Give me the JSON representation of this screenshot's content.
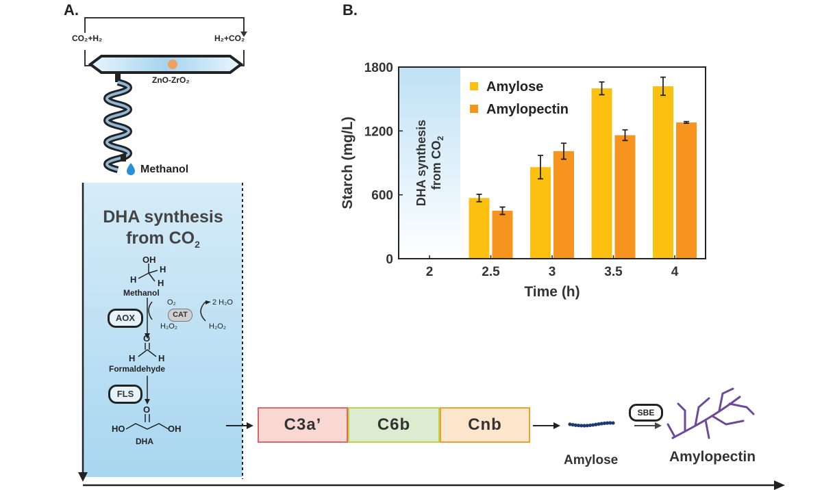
{
  "panel_a": {
    "label": "A.",
    "reactor": {
      "left_label": "CO₂+H₂",
      "right_label": "H₂+CO₂",
      "catalyst_label": "ZnO-ZrO₂",
      "product_label": "Methanol"
    },
    "dha_box": {
      "title_line1": "DHA synthesis",
      "title_line2": "from CO",
      "title_sub": "2",
      "methanol": {
        "label": "Methanol",
        "oh": "OH",
        "h": "H"
      },
      "aox": {
        "enzyme": "AOX",
        "o2": "O₂",
        "h2o2": "H₂O₂"
      },
      "cat": {
        "enzyme": "CAT",
        "h2o": "2 H₂O",
        "h2o2": "H₂O₂"
      },
      "formaldehyde": {
        "label": "Formaldehyde",
        "o": "O",
        "h": "H"
      },
      "fls": {
        "enzyme": "FLS"
      },
      "dha": {
        "label": "DHA",
        "o": "O",
        "ho": "HO",
        "oh": "OH"
      }
    },
    "modules": [
      "C3a’",
      "C6b",
      "Cnb"
    ],
    "sbe_label": "SBE",
    "amylose_label": "Amylose",
    "amylopectin_label": "Amylopectin",
    "colors": {
      "c3a": "#f9d8d4",
      "c3a_border": "#e06666",
      "c6b": "#dcecd0",
      "c6b_border": "#b9d64b",
      "cnb": "#fde6cc",
      "cnb_border": "#f0a030",
      "amylose_chain": "#1f3a73",
      "amylopectin": "#6b4a9a",
      "dha_bg_top": "#d6ecf8",
      "dha_bg_bottom": "#a8d6f0"
    }
  },
  "panel_b": {
    "label": "B.",
    "overlay_line1": "DHA synthesis",
    "overlay_line2": "from CO",
    "overlay_sub": "2"
  },
  "chart_data": {
    "type": "bar",
    "categories": [
      "2",
      "2.5",
      "3",
      "3.5",
      "4"
    ],
    "series": [
      {
        "name": "Amylose",
        "values": [
          0,
          570,
          860,
          1600,
          1620
        ],
        "errors": [
          0,
          35,
          110,
          60,
          85
        ],
        "color": "#fcc010"
      },
      {
        "name": "Amylopectin",
        "values": [
          0,
          450,
          1010,
          1160,
          1280
        ],
        "errors": [
          0,
          35,
          75,
          50,
          8
        ],
        "color": "#f7941d"
      }
    ],
    "xlabel": "Time (h)",
    "ylabel": "Starch (mg/L)",
    "ylim": [
      0,
      1800
    ],
    "yticks": [
      "0",
      "600",
      "1200",
      "1800"
    ],
    "legend_position": "top-left",
    "grid": false
  }
}
